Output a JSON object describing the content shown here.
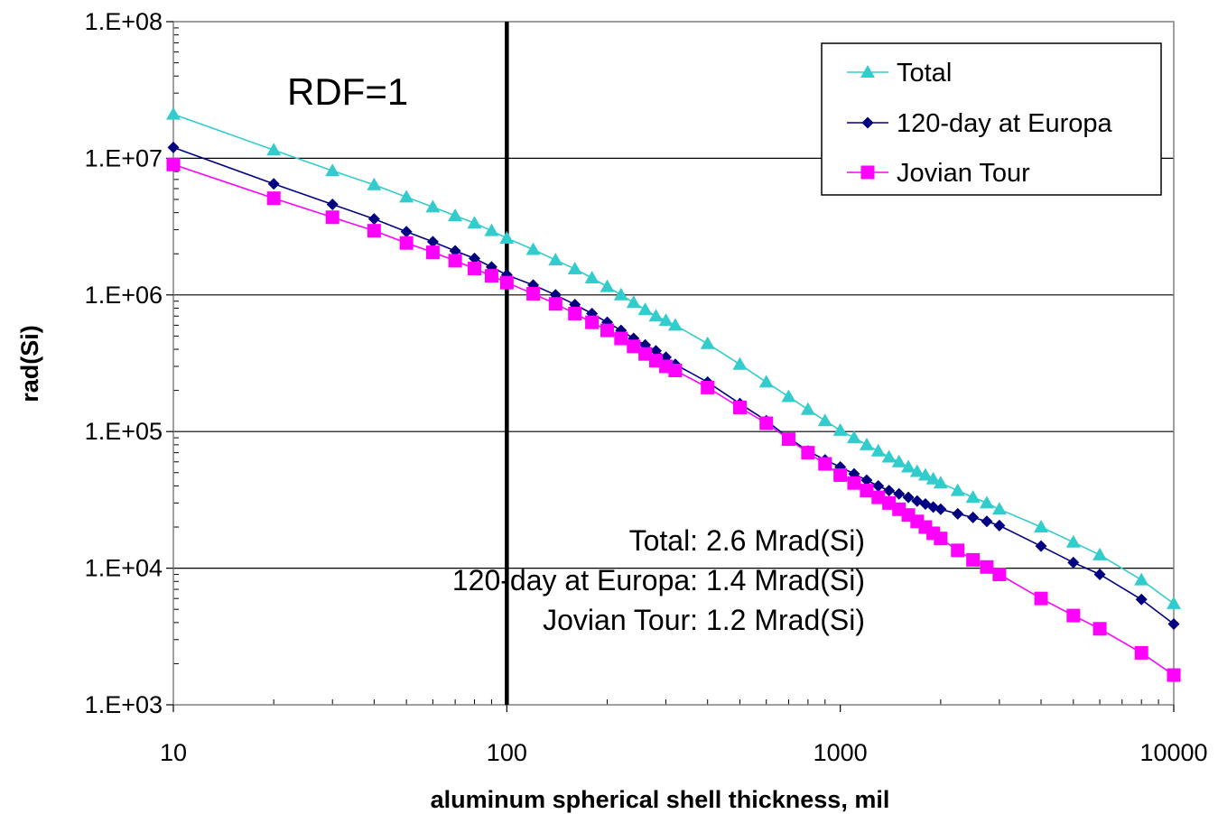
{
  "chart_data": {
    "type": "line",
    "xlabel": "aluminum spherical shell thickness, mil",
    "ylabel": "rad(Si)",
    "xscale": "log",
    "yscale": "log",
    "xlim": [
      10,
      10000
    ],
    "ylim": [
      1000,
      100000000
    ],
    "x_tick_labels": [
      "10",
      "100",
      "1000",
      "10000"
    ],
    "y_tick_labels": [
      "1.E+03",
      "1.E+04",
      "1.E+05",
      "1.E+06",
      "1.E+07",
      "1.E+08"
    ],
    "grid": "horizontal",
    "legend_position": "top-right",
    "vertical_line_x": 100,
    "series": [
      {
        "name": "Total",
        "color": "#33CCCC",
        "marker": "triangle",
        "x": [
          10,
          20,
          30,
          40,
          50,
          60,
          70,
          80,
          90,
          100,
          120,
          140,
          160,
          180,
          200,
          220,
          240,
          260,
          280,
          300,
          320,
          400,
          500,
          600,
          700,
          800,
          900,
          1000,
          1100,
          1200,
          1300,
          1400,
          1500,
          1600,
          1700,
          1800,
          1900,
          2000,
          2250,
          2500,
          2750,
          3000,
          4000,
          5000,
          6000,
          8000,
          10000
        ],
        "y": [
          21000000,
          11500000,
          8100000,
          6400000,
          5200000,
          4400000,
          3800000,
          3350000,
          2950000,
          2600000,
          2150000,
          1800000,
          1550000,
          1330000,
          1150000,
          1000000,
          880000,
          780000,
          700000,
          650000,
          600000,
          440000,
          310000,
          230000,
          180000,
          145000,
          120000,
          102000,
          90000,
          80000,
          72000,
          65000,
          60000,
          55000,
          51000,
          48000,
          45000,
          42000,
          37000,
          33000,
          30000,
          27000,
          20000,
          15500,
          12500,
          8200,
          5500
        ]
      },
      {
        "name": "120-day at Europa",
        "color": "#000080",
        "marker": "diamond",
        "x": [
          10,
          20,
          30,
          40,
          50,
          60,
          70,
          80,
          90,
          100,
          120,
          140,
          160,
          180,
          200,
          220,
          240,
          260,
          280,
          300,
          320,
          400,
          500,
          600,
          700,
          800,
          900,
          1000,
          1100,
          1200,
          1300,
          1400,
          1500,
          1600,
          1700,
          1800,
          1900,
          2000,
          2250,
          2500,
          2750,
          3000,
          4000,
          5000,
          6000,
          8000,
          10000
        ],
        "y": [
          12000000,
          6500000,
          4600000,
          3600000,
          2900000,
          2450000,
          2100000,
          1850000,
          1600000,
          1400000,
          1180000,
          1000000,
          850000,
          730000,
          630000,
          550000,
          480000,
          430000,
          390000,
          350000,
          310000,
          230000,
          160000,
          120000,
          90000,
          72000,
          62000,
          55000,
          49000,
          44000,
          40000,
          37000,
          35000,
          33000,
          31000,
          29500,
          28000,
          27000,
          25000,
          23500,
          22000,
          20500,
          14500,
          11000,
          9000,
          5900,
          3900
        ]
      },
      {
        "name": "Jovian Tour",
        "color": "#FF00FF",
        "marker": "square",
        "x": [
          10,
          20,
          30,
          40,
          50,
          60,
          70,
          80,
          90,
          100,
          120,
          140,
          160,
          180,
          200,
          220,
          240,
          260,
          280,
          300,
          320,
          400,
          500,
          600,
          700,
          800,
          900,
          1000,
          1100,
          1200,
          1300,
          1400,
          1500,
          1600,
          1700,
          1800,
          1900,
          2000,
          2250,
          2500,
          2750,
          3000,
          4000,
          5000,
          6000,
          8000,
          10000
        ],
        "y": [
          9000000,
          5100000,
          3700000,
          2950000,
          2400000,
          2050000,
          1780000,
          1560000,
          1380000,
          1230000,
          1020000,
          860000,
          730000,
          630000,
          550000,
          480000,
          420000,
          370000,
          330000,
          300000,
          280000,
          210000,
          150000,
          115000,
          88000,
          70000,
          58000,
          48000,
          42000,
          37000,
          33000,
          30000,
          27000,
          24500,
          22000,
          20000,
          18000,
          16500,
          13500,
          11500,
          10200,
          9000,
          6000,
          4500,
          3600,
          2400,
          1650
        ]
      }
    ],
    "annotations": [
      "RDF=1",
      "Total: 2.6 Mrad(Si)",
      "120-day at Europa: 1.4 Mrad(Si)",
      "Jovian Tour: 1.2 Mrad(Si)"
    ]
  }
}
